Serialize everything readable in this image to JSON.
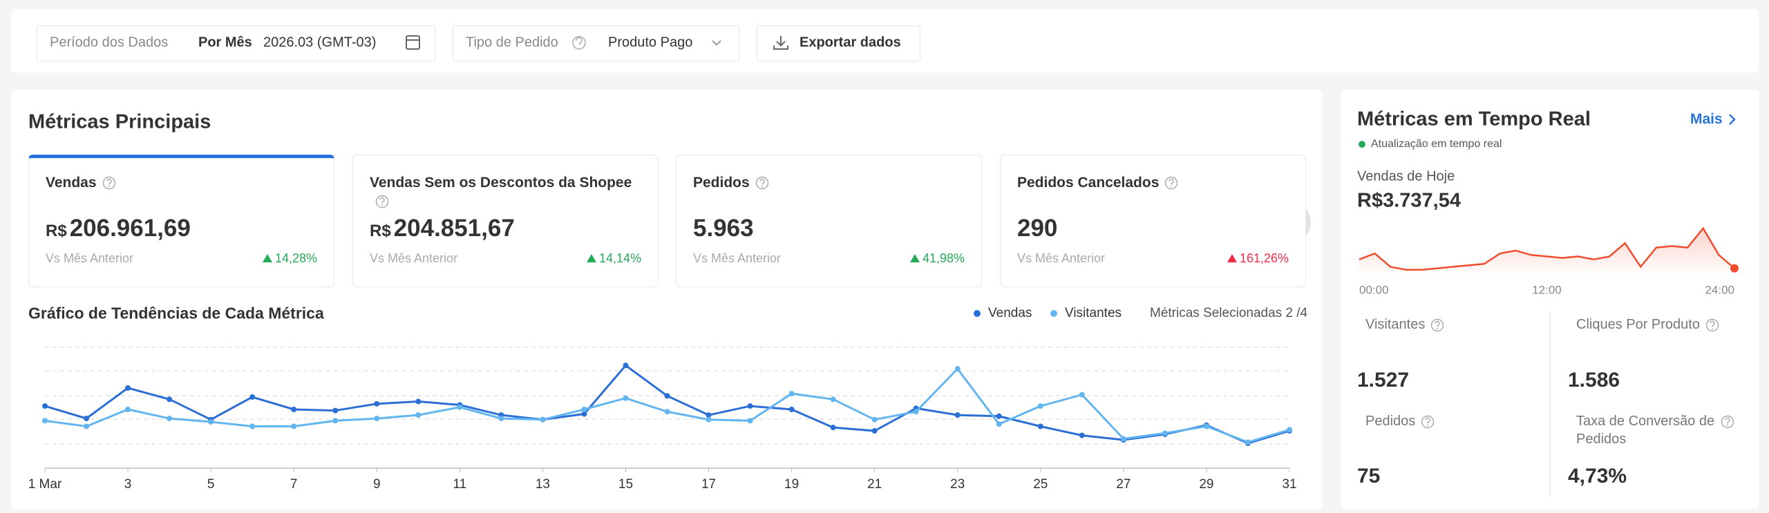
{
  "filters": {
    "period_label": "Período dos Dados",
    "period_mode": "Por Mês",
    "period_value": "2026.03 (GMT-03)",
    "order_type_label": "Tipo de Pedido",
    "order_type_value": "Produto Pago",
    "export": "Exportar dados"
  },
  "main": {
    "title": "Métricas Principais",
    "cards": [
      {
        "label": "Vendas",
        "currency": "R$",
        "value": "206.961,69",
        "compare": "Vs Mês Anterior",
        "change": "14,28%"
      },
      {
        "label": "Vendas Sem os Descontos da Shopee",
        "currency": "R$",
        "value": "204.851,67",
        "compare": "Vs Mês Anterior",
        "change": "14,14%"
      },
      {
        "label": "Pedidos",
        "value": "5.963",
        "compare": "Vs Mês Anterior",
        "change": "41,98%"
      },
      {
        "label": "Pedidos Cancelados",
        "value": "290",
        "compare": "Vs Mês Anterior",
        "change": "161,26%"
      }
    ],
    "trend_title": "Gráfico de Tendências de Cada Métrica",
    "selected": "Métricas Selecionadas 2 /4"
  },
  "chart_data": [
    {
      "type": "line",
      "categories": [
        "1 Mar",
        null,
        "3",
        null,
        "5",
        null,
        "7",
        null,
        "9",
        null,
        "11",
        null,
        "13",
        null,
        "15",
        null,
        "17",
        null,
        "19",
        null,
        "21",
        null,
        "23",
        null,
        "25",
        null,
        "27",
        null,
        "29",
        null,
        "31"
      ],
      "series": [
        {
          "name": "Vendas",
          "color": "#2b6fd6",
          "values": [
            55,
            44,
            71,
            61,
            43,
            63,
            52,
            51,
            57,
            59,
            56,
            47,
            43,
            48,
            91,
            64,
            47,
            55,
            52,
            36,
            33,
            53,
            47,
            46,
            37,
            29,
            25,
            30,
            38,
            22,
            33
          ]
        },
        {
          "name": "Visitantes",
          "color": "#62b5ef",
          "values": [
            42,
            37,
            52,
            44,
            41,
            37,
            37,
            42,
            44,
            47,
            54,
            44,
            43,
            52,
            62,
            50,
            43,
            42,
            66,
            61,
            43,
            50,
            88,
            39,
            55,
            65,
            26,
            31,
            37,
            23,
            34
          ]
        }
      ],
      "ylim": [
        0,
        115
      ]
    },
    {
      "type": "area",
      "color": "#ee4d2d",
      "x": [
        0,
        1,
        2,
        3,
        4,
        5,
        6,
        7,
        8,
        9,
        10,
        11,
        12,
        13,
        14,
        15,
        16,
        17,
        18,
        19,
        20,
        21,
        22,
        23,
        24
      ],
      "values": [
        9,
        13,
        4,
        2,
        2,
        3,
        4,
        5,
        6,
        13,
        15,
        12,
        11,
        10,
        11,
        9,
        11,
        20,
        4,
        17,
        18,
        17,
        30,
        12,
        3
      ],
      "xlim": [
        0,
        24
      ],
      "ylim": [
        0,
        35
      ],
      "xticks": [
        {
          "value": 0,
          "label": "00:00"
        },
        {
          "value": 12,
          "label": "12:00"
        },
        {
          "value": 24,
          "label": "24:00"
        }
      ]
    }
  ],
  "realtime": {
    "title": "Métricas em Tempo Real",
    "more": "Mais",
    "status": "Atualização em tempo real",
    "today_label": "Vendas de Hoje",
    "today_value": "R$3.737,54",
    "metrics": [
      {
        "label": "Visitantes",
        "value": "1.527"
      },
      {
        "label": "Cliques Por Produto",
        "value": "1.586"
      },
      {
        "label": "Pedidos",
        "value": "75"
      },
      {
        "label": "Taxa de Conversão de Pedidos",
        "value": "4,73%"
      }
    ]
  }
}
